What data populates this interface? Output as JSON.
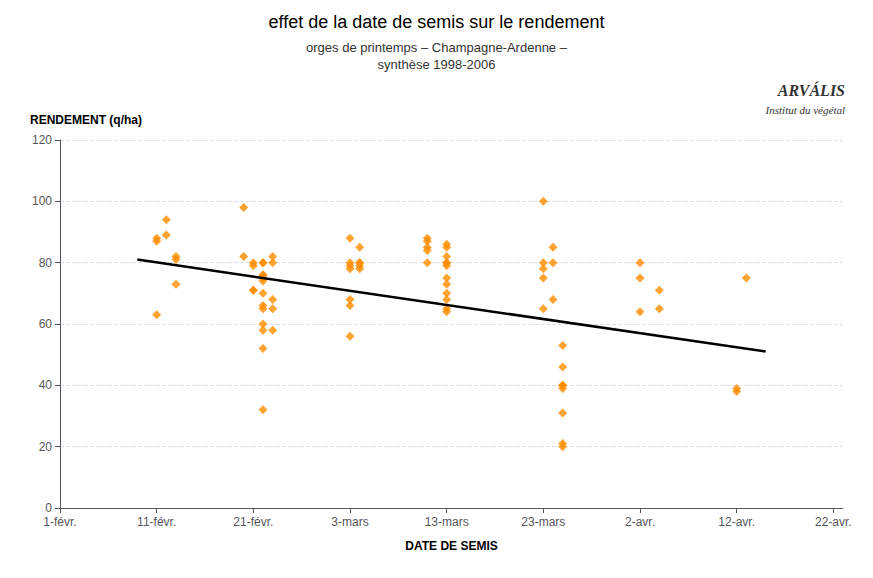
{
  "chart_data": {
    "type": "scatter",
    "title": "effet de la date de semis sur le rendement",
    "subtitle": "orges de printemps – Champagne-Ardenne –\nsynthèse 1998-2006",
    "xlabel": "DATE DE SEMIS",
    "ylabel": "RENDEMENT (q/ha)",
    "annotations": [
      "ARVÁLIS",
      "Institut du végétal"
    ],
    "xlim": [
      0,
      81
    ],
    "xticks": [
      {
        "value": 0,
        "label": "1-févr."
      },
      {
        "value": 10,
        "label": "11-févr."
      },
      {
        "value": 20,
        "label": "21-févr."
      },
      {
        "value": 30,
        "label": "3-mars"
      },
      {
        "value": 40,
        "label": "13-mars"
      },
      {
        "value": 50,
        "label": "23-mars"
      },
      {
        "value": 60,
        "label": "2-avr."
      },
      {
        "value": 70,
        "label": "12-avr."
      },
      {
        "value": 80,
        "label": "22-avr."
      }
    ],
    "ylim": [
      0,
      120
    ],
    "yticks": [
      0,
      20,
      40,
      60,
      80,
      100,
      120
    ],
    "grid": true,
    "series": [
      {
        "type": "scatter",
        "color": "#FF8C00",
        "marker": "diamond",
        "x": [
          10,
          10,
          10,
          11,
          11,
          12,
          12,
          12,
          19,
          19,
          20,
          20,
          20,
          20,
          21,
          21,
          21,
          21,
          21,
          21,
          21,
          21,
          21,
          21,
          21,
          21,
          21,
          22,
          22,
          22,
          22,
          22,
          30,
          30,
          30,
          30,
          30,
          30,
          30,
          31,
          31,
          31,
          31,
          31,
          38,
          38,
          38,
          38,
          38,
          40,
          40,
          40,
          40,
          40,
          40,
          40,
          40,
          40,
          40,
          40,
          40,
          50,
          50,
          50,
          50,
          50,
          51,
          51,
          51,
          52,
          52,
          52,
          52,
          52,
          52,
          52,
          52,
          60,
          60,
          60,
          62,
          62,
          70,
          70,
          71
        ],
        "values": [
          88,
          87,
          63,
          94,
          89,
          82,
          81,
          73,
          98,
          82,
          80,
          79,
          71,
          71,
          80,
          80,
          76,
          76,
          75,
          74,
          70,
          66,
          65,
          60,
          58,
          52,
          32,
          82,
          80,
          68,
          65,
          58,
          88,
          80,
          79,
          78,
          68,
          66,
          56,
          85,
          80,
          80,
          79,
          78,
          88,
          87,
          85,
          84,
          80,
          86,
          85,
          82,
          80,
          80,
          79,
          75,
          73,
          70,
          68,
          65,
          64,
          100,
          80,
          78,
          75,
          65,
          85,
          80,
          68,
          53,
          46,
          40,
          40,
          39,
          31,
          21,
          20,
          80,
          75,
          64,
          71,
          65,
          38,
          39,
          75
        ]
      },
      {
        "type": "line",
        "color": "#000000",
        "line_style": "solid",
        "x": [
          8,
          73
        ],
        "values": [
          81,
          51
        ]
      }
    ]
  }
}
